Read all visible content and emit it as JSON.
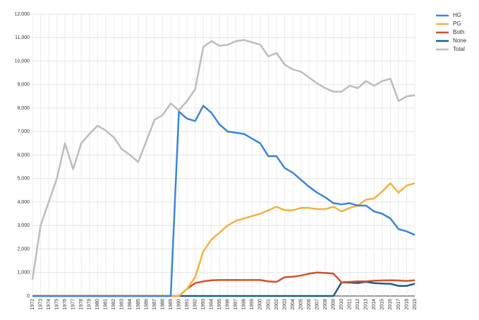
{
  "chart_data": {
    "type": "line",
    "categories": [
      "1972",
      "1973",
      "1974",
      "1975",
      "1976",
      "1977",
      "1978",
      "1979",
      "1980",
      "1981",
      "1982",
      "1983",
      "1984",
      "1985",
      "1986",
      "1987",
      "1988",
      "1989",
      "1990",
      "1991",
      "1992",
      "1993",
      "1994",
      "1995",
      "1996",
      "1997",
      "1998",
      "1999",
      "2000",
      "2001",
      "2002",
      "2003",
      "2004",
      "2005",
      "2006",
      "2007",
      "2008",
      "2009",
      "2010",
      "2011",
      "2012",
      "2013",
      "2014",
      "2015",
      "2016",
      "2017",
      "2018",
      "2019"
    ],
    "series": [
      {
        "name": "HG",
        "color": "#3d85d8",
        "values": [
          0,
          0,
          0,
          0,
          0,
          0,
          0,
          0,
          0,
          0,
          0,
          0,
          0,
          0,
          0,
          0,
          0,
          0,
          7850,
          7550,
          7450,
          8100,
          7800,
          7300,
          7000,
          6950,
          6900,
          6700,
          6500,
          5950,
          5950,
          5450,
          5250,
          4950,
          4650,
          4400,
          4200,
          3950,
          3900,
          3950,
          3850,
          3850,
          3600,
          3500,
          3300,
          2850,
          2750,
          2600
        ]
      },
      {
        "name": "PG",
        "color": "#f6b042",
        "values": [
          0,
          0,
          0,
          0,
          0,
          0,
          0,
          0,
          0,
          0,
          0,
          0,
          0,
          0,
          0,
          0,
          0,
          0,
          0,
          300,
          800,
          1900,
          2400,
          2700,
          3000,
          3200,
          3300,
          3400,
          3500,
          3650,
          3800,
          3650,
          3650,
          3750,
          3750,
          3700,
          3700,
          3800,
          3600,
          3750,
          3850,
          4100,
          4150,
          4450,
          4800,
          4400,
          4700,
          4800
        ]
      },
      {
        "name": "Both",
        "color": "#d4502a",
        "values": [
          0,
          0,
          0,
          0,
          0,
          0,
          0,
          0,
          0,
          0,
          0,
          0,
          0,
          0,
          0,
          0,
          0,
          0,
          0,
          300,
          550,
          620,
          670,
          680,
          680,
          680,
          680,
          680,
          680,
          620,
          600,
          800,
          820,
          870,
          950,
          1000,
          980,
          950,
          580,
          600,
          620,
          620,
          650,
          660,
          670,
          660,
          640,
          670
        ]
      },
      {
        "name": "None",
        "color": "#1b5f82",
        "values": [
          0,
          0,
          0,
          0,
          0,
          0,
          0,
          0,
          0,
          0,
          0,
          0,
          0,
          0,
          0,
          0,
          0,
          0,
          0,
          0,
          0,
          0,
          0,
          0,
          0,
          0,
          0,
          0,
          0,
          0,
          0,
          0,
          0,
          0,
          0,
          0,
          0,
          0,
          580,
          570,
          550,
          600,
          550,
          530,
          520,
          430,
          430,
          520
        ]
      },
      {
        "name": "Total",
        "color": "#bdbdbd",
        "values": [
          700,
          3000,
          4000,
          5000,
          6500,
          5400,
          6500,
          6900,
          7250,
          7050,
          6750,
          6250,
          6000,
          5700,
          6600,
          7500,
          7700,
          8200,
          7900,
          8300,
          8800,
          10600,
          10850,
          10650,
          10700,
          10850,
          10900,
          10800,
          10700,
          10200,
          10350,
          9850,
          9650,
          9550,
          9300,
          9050,
          8850,
          8700,
          8700,
          8950,
          8850,
          9150,
          8950,
          9150,
          9250,
          8300,
          8500,
          8550
        ]
      }
    ],
    "ylim": [
      0,
      12000
    ],
    "yticks": [
      0,
      {
        "value": 1000,
        "label": "1,000"
      },
      {
        "value": 2000,
        "label": "2,000"
      },
      {
        "value": 3000,
        "label": "3,000"
      },
      {
        "value": 4000,
        "label": "4,000"
      },
      {
        "value": 5000,
        "label": "5,000"
      },
      {
        "value": 6000,
        "label": "6,000"
      },
      {
        "value": 7000,
        "label": "7,000"
      },
      {
        "value": 8000,
        "label": "8,000"
      },
      {
        "value": 9000,
        "label": "9,000"
      },
      {
        "value": 10000,
        "label": "10,000"
      },
      {
        "value": 11000,
        "label": "11,000"
      },
      {
        "value": 12000,
        "label": "12,000"
      }
    ],
    "grid": true
  }
}
